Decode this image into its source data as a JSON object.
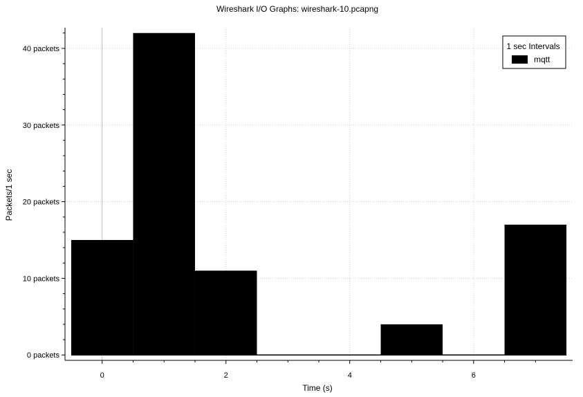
{
  "chart_data": {
    "type": "bar",
    "title": "Wireshark I/O Graphs: wireshark-10.pcapng",
    "xlabel": "Time (s)",
    "ylabel": "Packets/1 sec",
    "x_ticks": [
      0,
      2,
      4,
      6
    ],
    "y_ticks": [
      0,
      10,
      20,
      30,
      40
    ],
    "y_tick_unit": "packets",
    "xlim": [
      -0.6,
      7.6
    ],
    "ylim": [
      -0.7,
      42.7
    ],
    "grid": true,
    "legend": {
      "title": "1 sec Intervals",
      "placement": "top-right"
    },
    "series": [
      {
        "name": "mqtt",
        "color": "#000000",
        "x": [
          0,
          1,
          2,
          3,
          4,
          5,
          6,
          7
        ],
        "values": [
          15,
          42,
          11,
          0,
          0,
          4,
          0,
          17
        ]
      }
    ]
  }
}
